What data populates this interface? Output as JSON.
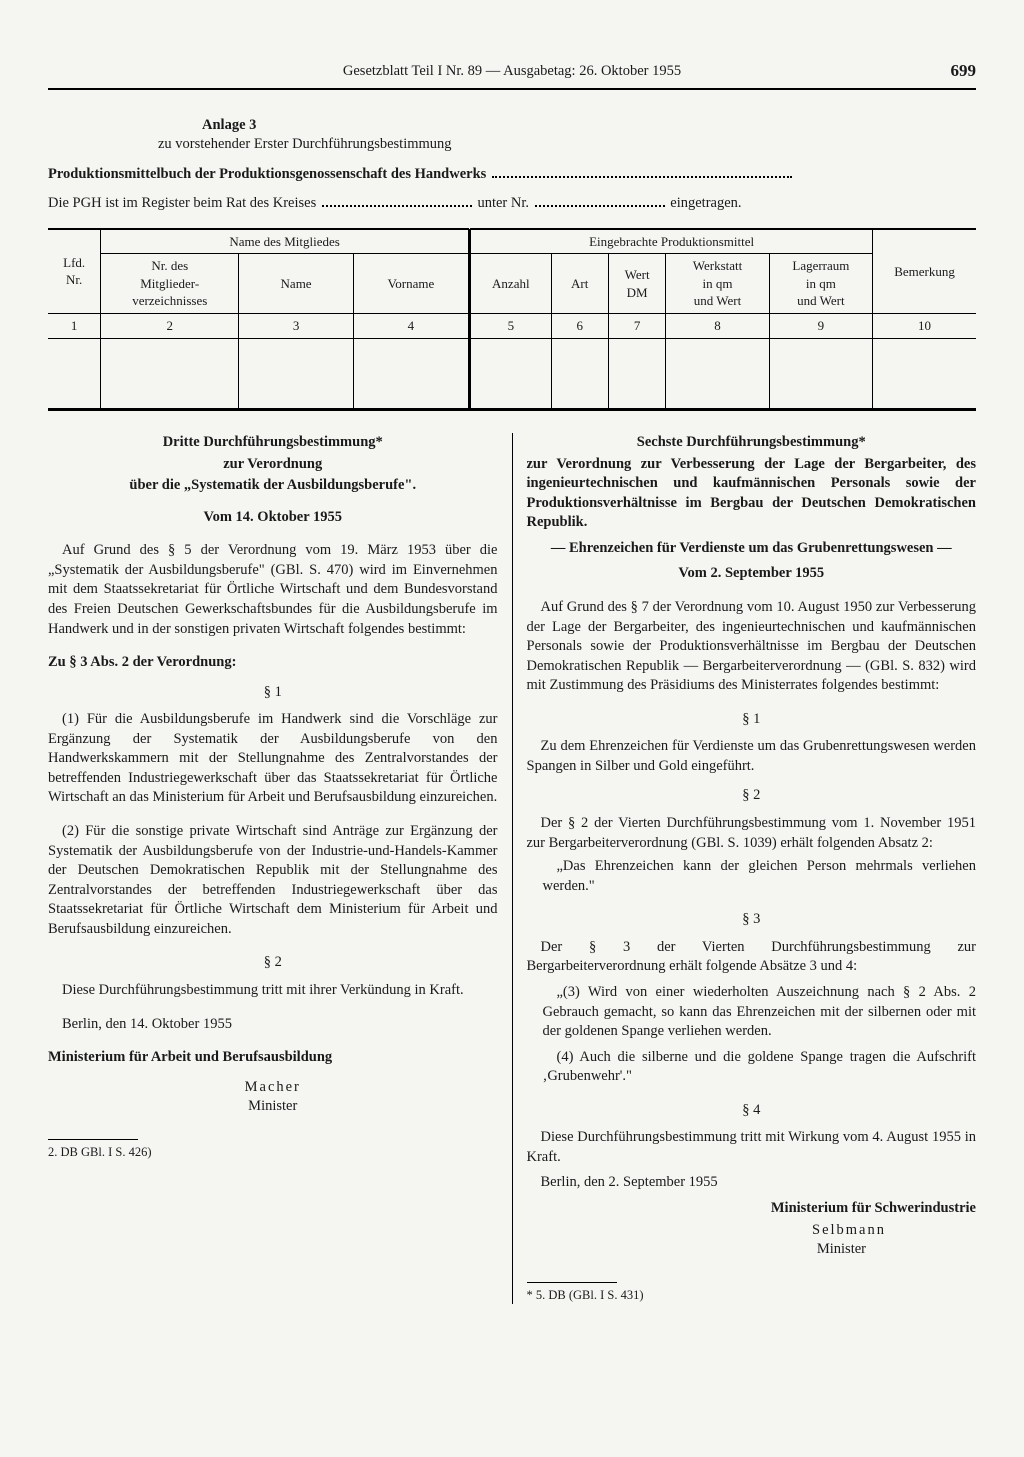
{
  "header": {
    "title": "Gesetzblatt Teil I Nr. 89 — Ausgabetag: 26. Oktober 1955",
    "page": "699"
  },
  "anlage": {
    "label": "Anlage 3",
    "sub": "zu vorstehender Erster Durchführungsbestimmung"
  },
  "prod_section": {
    "title": "Produktionsmittelbuch der Produktionsgenossenschaft des Handwerks",
    "reg_a": "Die PGH ist im Register beim Rat des Kreises",
    "reg_b": "unter Nr.",
    "reg_c": "eingetragen."
  },
  "table": {
    "h_lfd": "Lfd.\nNr.",
    "h_name_group": "Name des Mitgliedes",
    "h_nr_mitgl": "Nr. des\nMitglieder-\nverzeichnisses",
    "h_name": "Name",
    "h_vorname": "Vorname",
    "h_prod_group": "Eingebrachte Produktionsmittel",
    "h_anzahl": "Anzahl",
    "h_art": "Art",
    "h_wert": "Wert\nDM",
    "h_werkstatt": "Werkstatt\nin qm\nund Wert",
    "h_lagerraum": "Lagerraum\nin qm\nund Wert",
    "h_bemerkung": "Bemerkung",
    "nums": [
      "1",
      "2",
      "3",
      "4",
      "5",
      "6",
      "7",
      "8",
      "9",
      "10"
    ]
  },
  "left": {
    "title1": "Dritte Durchführungsbestimmung*",
    "title2": "zur Verordnung",
    "title3": "über die „Systematik der Ausbildungsberufe\".",
    "date": "Vom 14. Oktober 1955",
    "intro": "Auf Grund des § 5 der Verordnung vom 19. März 1953 über die „Systematik der Ausbildungsberufe\" (GBl. S. 470) wird im Einvernehmen mit dem Staatssekretariat für Örtliche Wirtschaft und dem Bundesvorstand des Freien Deutschen Gewerkschaftsbundes für die Ausbildungsberufe im Handwerk und in der sonstigen privaten Wirtschaft folgendes bestimmt:",
    "sub": "Zu § 3 Abs. 2 der Verordnung:",
    "s1": "§ 1",
    "p1": "(1) Für die Ausbildungsberufe im Handwerk sind die Vorschläge zur Ergänzung der Systematik der Ausbildungsberufe von den Handwerkskammern mit der Stellungnahme des Zentralvorstandes der betreffenden Industriegewerkschaft über das Staatssekretariat für Örtliche Wirtschaft an das Ministerium für Arbeit und Berufsausbildung einzureichen.",
    "p2": "(2) Für die sonstige private Wirtschaft sind Anträge zur Ergänzung der Systematik der Ausbildungsberufe von der Industrie-und-Handels-Kammer der Deutschen Demokratischen Republik mit der Stellungnahme des Zentralvorstandes der betreffenden Industriegewerkschaft über das Staatssekretariat für Örtliche Wirtschaft dem Ministerium für Arbeit und Berufsausbildung einzureichen.",
    "s2": "§ 2",
    "p3": "Diese Durchführungsbestimmung tritt mit ihrer Verkündung in Kraft.",
    "place": "Berlin, den 14. Oktober 1955",
    "ministry": "Ministerium für Arbeit und Berufsausbildung",
    "signer": "Macher",
    "signer_title": "Minister",
    "footnote": "2. DB GBl. I S. 426)"
  },
  "right": {
    "title1": "Sechste Durchführungsbestimmung*",
    "title2": "zur Verordnung zur Verbesserung der Lage der Bergarbeiter, des ingenieurtechnischen und kaufmännischen Personals sowie der Produktionsverhältnisse im Bergbau der Deutschen Demokratischen Republik.",
    "dash": "— Ehrenzeichen für Verdienste um das Grubenrettungswesen —",
    "date": "Vom 2. September 1955",
    "intro": "Auf Grund des § 7 der Verordnung vom 10. August 1950 zur Verbesserung der Lage der Bergarbeiter, des ingenieurtechnischen und kaufmännischen Personals sowie der Produktionsverhältnisse im Bergbau der Deutschen Demokratischen Republik — Bergarbeiterverordnung — (GBl. S. 832) wird mit Zustimmung des Präsidiums des Ministerrates folgendes bestimmt:",
    "s1": "§ 1",
    "p1": "Zu dem Ehrenzeichen für Verdienste um das Grubenrettungswesen werden Spangen in Silber und Gold eingeführt.",
    "s2": "§ 2",
    "p2": "Der § 2 der Vierten Durchführungsbestimmung vom 1. November 1951 zur Bergarbeiterverordnung (GBl. S. 1039) erhält folgenden Absatz 2:",
    "q2": "„Das Ehrenzeichen kann der gleichen Person mehrmals verliehen werden.\"",
    "s3": "§ 3",
    "p3": "Der § 3 der Vierten Durchführungsbestimmung zur Bergarbeiterverordnung erhält folgende Absätze 3 und 4:",
    "q3a": "„(3) Wird von einer wiederholten Auszeichnung nach § 2 Abs. 2 Gebrauch gemacht, so kann das Ehrenzeichen mit der silbernen oder mit der goldenen Spange verliehen werden.",
    "q3b": "(4) Auch die silberne und die goldene Spange tragen die Aufschrift ‚Grubenwehr'.\"",
    "s4": "§ 4",
    "p4": "Diese Durchführungsbestimmung tritt mit Wirkung vom 4. August 1955 in Kraft.",
    "place": "Berlin, den 2. September 1955",
    "ministry": "Ministerium für Schwerindustrie",
    "signer": "Selbmann",
    "signer_title": "Minister",
    "footnote": "* 5. DB (GBl. I S. 431)"
  }
}
